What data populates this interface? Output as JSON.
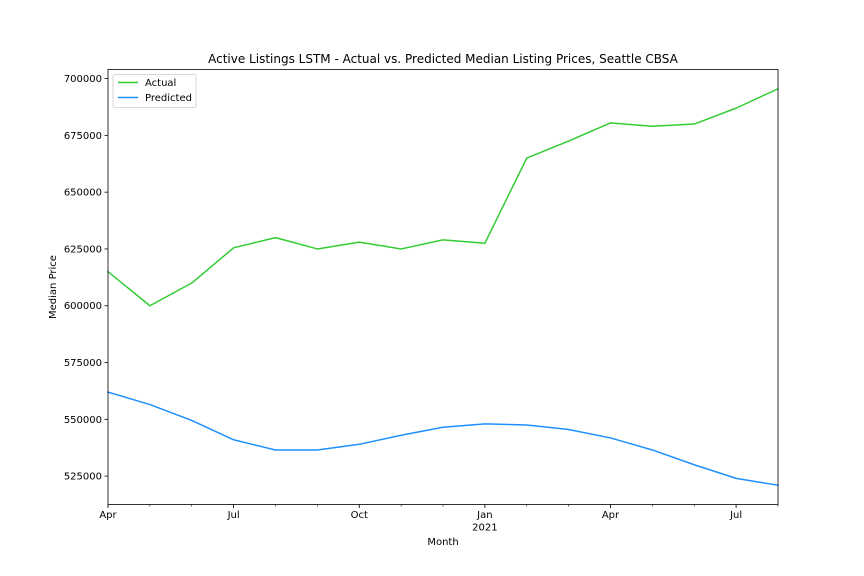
{
  "chart_data": {
    "type": "line",
    "title": "Active Listings LSTM - Actual vs. Predicted Median Listing Prices, Seattle CBSA",
    "xlabel": "Month",
    "ylabel": "Median Price",
    "x": [
      "2020-04",
      "2020-05",
      "2020-06",
      "2020-07",
      "2020-08",
      "2020-09",
      "2020-10",
      "2020-11",
      "2020-12",
      "2021-01",
      "2021-02",
      "2021-03",
      "2021-04",
      "2021-05",
      "2021-06",
      "2021-07",
      "2021-08"
    ],
    "xlim": [
      "2020-04",
      "2021-08"
    ],
    "ylim": [
      512500,
      704000
    ],
    "x_ticks": [
      {
        "x": "2020-04",
        "label": "Apr",
        "sublabel": ""
      },
      {
        "x": "2020-07",
        "label": "Jul",
        "sublabel": ""
      },
      {
        "x": "2020-10",
        "label": "Oct",
        "sublabel": ""
      },
      {
        "x": "2021-01",
        "label": "Jan",
        "sublabel": "2021"
      },
      {
        "x": "2021-04",
        "label": "Apr",
        "sublabel": ""
      },
      {
        "x": "2021-07",
        "label": "Jul",
        "sublabel": ""
      }
    ],
    "y_ticks": [
      525000,
      550000,
      575000,
      600000,
      625000,
      650000,
      675000,
      700000
    ],
    "grid": false,
    "legend_position": "top-left",
    "series": [
      {
        "name": "Actual",
        "color": "#32cd32",
        "values": [
          615000,
          600000,
          610000,
          625500,
          630000,
          625000,
          628000,
          625000,
          629000,
          627500,
          665000,
          672500,
          680500,
          679000,
          680000,
          687000,
          695500
        ]
      },
      {
        "name": "Predicted",
        "color": "#1e90ff",
        "values": [
          562000,
          556500,
          549500,
          541000,
          536500,
          536500,
          539000,
          543000,
          546500,
          548000,
          547500,
          545500,
          541800,
          536500,
          530000,
          524000,
          521000
        ]
      }
    ]
  }
}
